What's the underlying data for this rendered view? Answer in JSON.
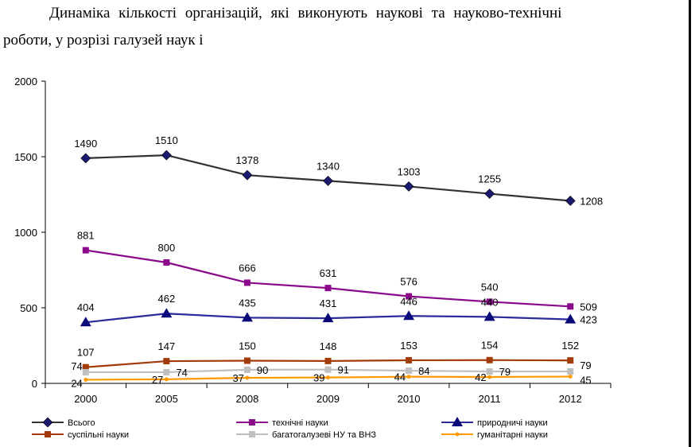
{
  "title_line1": "Динаміка кількості організацій, які виконують наукові та науково-технічні",
  "title_line2": "роботи, у розрізі галузей наук і",
  "chart_data": {
    "type": "line",
    "title": "",
    "categories": [
      "2000",
      "2005",
      "2008",
      "2009",
      "2010",
      "2011",
      "2012"
    ],
    "ylim": [
      0,
      2000
    ],
    "yticks": [
      0,
      500,
      1000,
      1500,
      2000
    ],
    "grid": false,
    "legend_position": "bottom",
    "series": [
      {
        "name": "Всього",
        "values": [
          1490,
          1510,
          1378,
          1340,
          1303,
          1255,
          1208
        ],
        "color": "#333333",
        "marker": "diamond",
        "marker_color": "#1a1a6e"
      },
      {
        "name": "технічні науки",
        "values": [
          881,
          800,
          666,
          631,
          576,
          540,
          509
        ],
        "color": "#8b0a8b",
        "marker": "square",
        "marker_color": "#8b0a8b"
      },
      {
        "name": "природничі науки",
        "values": [
          404,
          462,
          435,
          431,
          446,
          440,
          423
        ],
        "color": "#2b2b9a",
        "marker": "triangle",
        "marker_color": "#0a0a7a"
      },
      {
        "name": "суспільні науки",
        "values": [
          107,
          147,
          150,
          148,
          153,
          154,
          152
        ],
        "color": "#a33a0a",
        "marker": "square",
        "marker_color": "#a33a0a"
      },
      {
        "name": "багатогалузеві НУ та ВНЗ",
        "values": [
          74,
          74,
          90,
          91,
          84,
          79,
          79
        ],
        "color": "#bfbfbf",
        "marker": "square",
        "marker_color": "#bfbfbf"
      },
      {
        "name": "гуманітарні науки",
        "values": [
          24,
          27,
          37,
          39,
          44,
          42,
          45
        ],
        "color": "#ff9900",
        "marker": "circle",
        "marker_color": "#ff9900"
      }
    ]
  }
}
